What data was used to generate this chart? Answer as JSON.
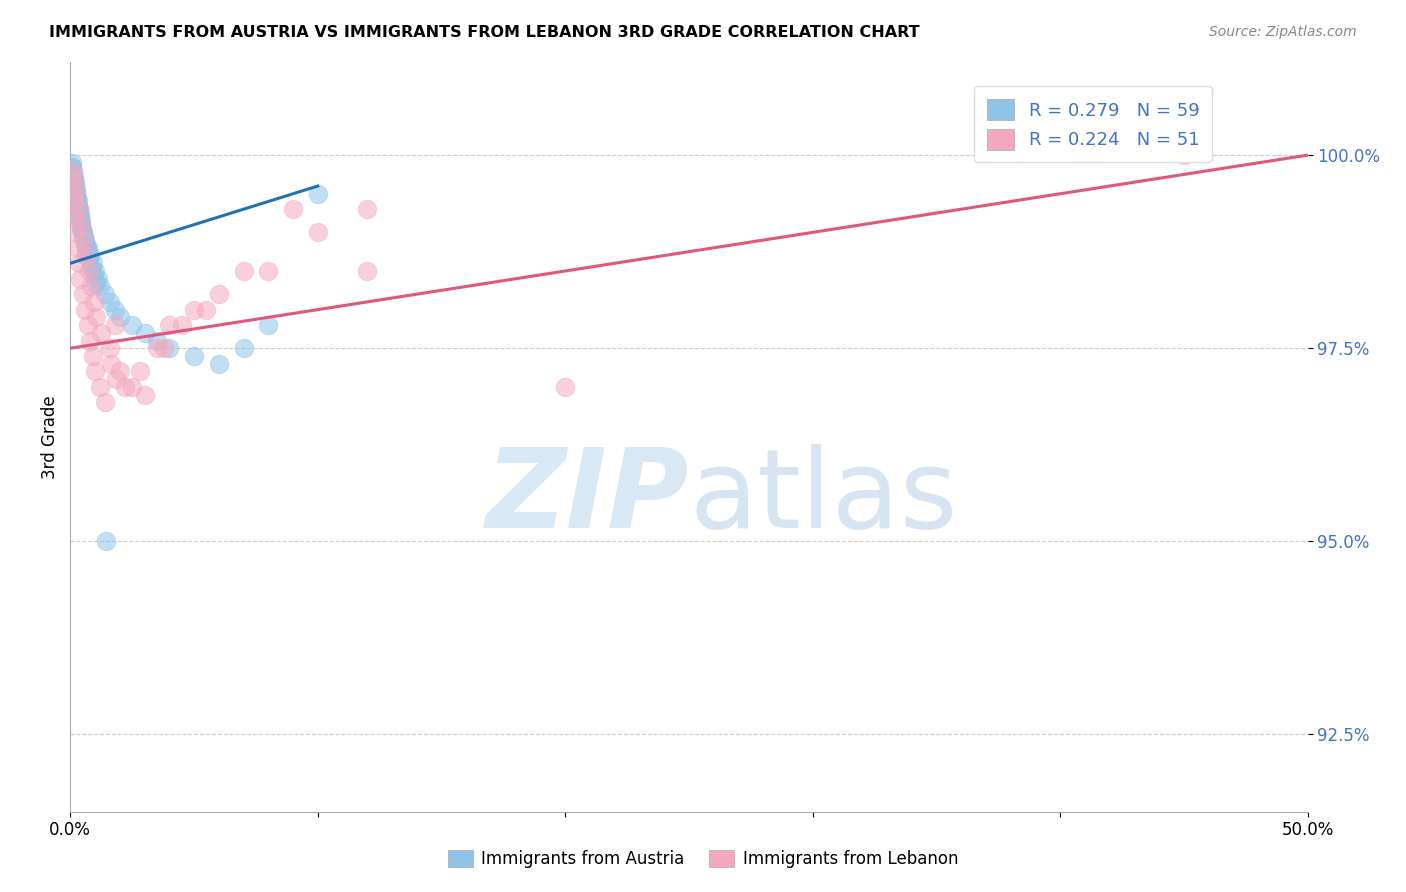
{
  "title": "IMMIGRANTS FROM AUSTRIA VS IMMIGRANTS FROM LEBANON 3RD GRADE CORRELATION CHART",
  "source": "Source: ZipAtlas.com",
  "ylabel": "3rd Grade",
  "xlim": [
    0.0,
    50.0
  ],
  "ylim": [
    91.5,
    101.2
  ],
  "yticks": [
    92.5,
    95.0,
    97.5,
    100.0
  ],
  "xticks": [
    0.0,
    10.0,
    20.0,
    30.0,
    40.0,
    50.0
  ],
  "xtick_labels": [
    "0.0%",
    "",
    "",
    "",
    "",
    "50.0%"
  ],
  "ytick_labels": [
    "92.5%",
    "95.0%",
    "97.5%",
    "100.0%"
  ],
  "legend_label1": "Immigrants from Austria",
  "legend_label2": "Immigrants from Lebanon",
  "r1": 0.279,
  "n1": 59,
  "r2": 0.224,
  "n2": 51,
  "color_austria": "#8ec4e8",
  "color_lebanon": "#f4a8be",
  "color_austria_line": "#2171b5",
  "color_lebanon_line": "#e05878",
  "austria_x": [
    0.05,
    0.08,
    0.1,
    0.12,
    0.15,
    0.18,
    0.2,
    0.22,
    0.25,
    0.28,
    0.3,
    0.33,
    0.35,
    0.38,
    0.4,
    0.42,
    0.45,
    0.48,
    0.5,
    0.55,
    0.6,
    0.65,
    0.7,
    0.75,
    0.8,
    0.9,
    1.0,
    1.1,
    1.2,
    1.4,
    1.6,
    1.8,
    2.0,
    2.5,
    3.0,
    3.5,
    4.0,
    5.0,
    6.0,
    7.0,
    8.0,
    10.0,
    0.05,
    0.08,
    0.12,
    0.18,
    0.22,
    0.28,
    0.33,
    0.38,
    0.45,
    0.52,
    0.58,
    0.65,
    0.75,
    0.85,
    0.95,
    1.05,
    1.45
  ],
  "austria_y": [
    99.9,
    99.85,
    99.8,
    99.75,
    99.7,
    99.65,
    99.6,
    99.55,
    99.5,
    99.45,
    99.4,
    99.35,
    99.3,
    99.25,
    99.2,
    99.15,
    99.1,
    99.05,
    99.0,
    98.95,
    98.9,
    98.85,
    98.8,
    98.75,
    98.7,
    98.6,
    98.5,
    98.4,
    98.3,
    98.2,
    98.1,
    98.0,
    97.9,
    97.8,
    97.7,
    97.6,
    97.5,
    97.4,
    97.3,
    97.5,
    97.8,
    99.5,
    99.85,
    99.75,
    99.65,
    99.55,
    99.45,
    99.35,
    99.25,
    99.15,
    99.05,
    98.95,
    98.85,
    98.75,
    98.65,
    98.55,
    98.45,
    98.35,
    95.0
  ],
  "lebanon_x": [
    0.05,
    0.1,
    0.15,
    0.2,
    0.25,
    0.3,
    0.35,
    0.4,
    0.5,
    0.6,
    0.7,
    0.8,
    0.9,
    1.0,
    1.2,
    1.4,
    1.6,
    1.8,
    2.0,
    2.5,
    3.0,
    3.5,
    4.0,
    5.0,
    6.0,
    8.0,
    10.0,
    12.0,
    0.15,
    0.25,
    0.35,
    0.45,
    0.55,
    0.65,
    0.75,
    0.85,
    0.95,
    1.05,
    1.25,
    1.65,
    1.85,
    2.2,
    2.8,
    3.8,
    4.5,
    5.5,
    7.0,
    9.0,
    12.0,
    20.0,
    45.0
  ],
  "lebanon_y": [
    99.8,
    99.6,
    99.4,
    99.2,
    99.0,
    98.8,
    98.6,
    98.4,
    98.2,
    98.0,
    97.8,
    97.6,
    97.4,
    97.2,
    97.0,
    96.8,
    97.5,
    97.8,
    97.2,
    97.0,
    96.9,
    97.5,
    97.8,
    98.0,
    98.2,
    98.5,
    99.0,
    99.3,
    99.7,
    99.5,
    99.3,
    99.1,
    98.9,
    98.7,
    98.5,
    98.3,
    98.1,
    97.9,
    97.7,
    97.3,
    97.1,
    97.0,
    97.2,
    97.5,
    97.8,
    98.0,
    98.5,
    99.3,
    98.5,
    97.0,
    100.0
  ],
  "austria_line_x": [
    0.0,
    10.0
  ],
  "austria_line_y": [
    98.6,
    99.6
  ],
  "lebanon_line_x": [
    0.0,
    50.0
  ],
  "lebanon_line_y": [
    97.5,
    100.0
  ]
}
